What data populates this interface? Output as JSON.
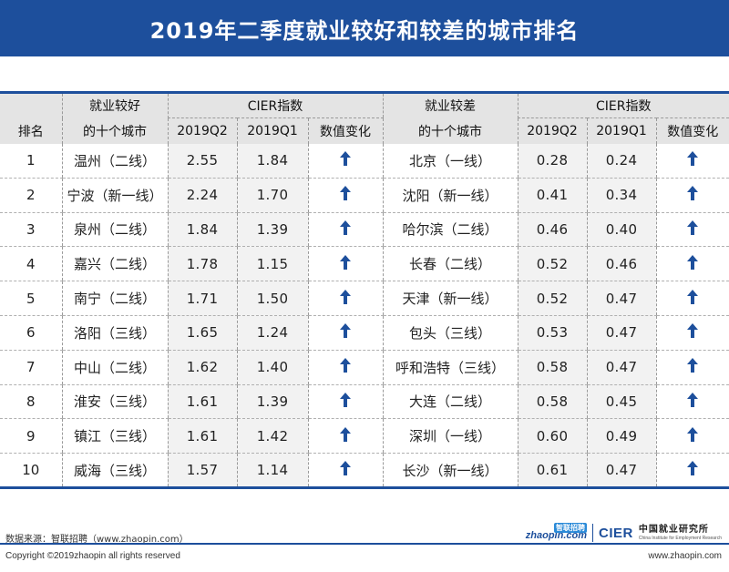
{
  "title": "2019年二季度就业较好和较差的城市排名",
  "table": {
    "headers": {
      "rank": "排名",
      "good_city_line1": "就业较好",
      "good_city_line2": "的十个城市",
      "cier_index": "CIER指数",
      "q2": "2019Q2",
      "q1": "2019Q1",
      "change": "数值变化",
      "bad_city_line1": "就业较差",
      "bad_city_line2": "的十个城市",
      "cier_index_2": "CIER指数",
      "q2_2": "2019Q2",
      "q1_2": "2019Q1",
      "change_2": "数值变化"
    },
    "rows": [
      {
        "rank": "1",
        "good_city": "温州（二线）",
        "good_q2": "2.55",
        "good_q1": "1.84",
        "good_change": "up",
        "bad_city": "北京（一线）",
        "bad_q2": "0.28",
        "bad_q1": "0.24",
        "bad_change": "up"
      },
      {
        "rank": "2",
        "good_city": "宁波（新一线）",
        "good_q2": "2.24",
        "good_q1": "1.70",
        "good_change": "up",
        "bad_city": "沈阳（新一线）",
        "bad_q2": "0.41",
        "bad_q1": "0.34",
        "bad_change": "up"
      },
      {
        "rank": "3",
        "good_city": "泉州（二线）",
        "good_q2": "1.84",
        "good_q1": "1.39",
        "good_change": "up",
        "bad_city": "哈尔滨（二线）",
        "bad_q2": "0.46",
        "bad_q1": "0.40",
        "bad_change": "up"
      },
      {
        "rank": "4",
        "good_city": "嘉兴（二线）",
        "good_q2": "1.78",
        "good_q1": "1.15",
        "good_change": "up",
        "bad_city": "长春（二线）",
        "bad_q2": "0.52",
        "bad_q1": "0.46",
        "bad_change": "up"
      },
      {
        "rank": "5",
        "good_city": "南宁（二线）",
        "good_q2": "1.71",
        "good_q1": "1.50",
        "good_change": "up",
        "bad_city": "天津（新一线）",
        "bad_q2": "0.52",
        "bad_q1": "0.47",
        "bad_change": "up"
      },
      {
        "rank": "6",
        "good_city": "洛阳（三线）",
        "good_q2": "1.65",
        "good_q1": "1.24",
        "good_change": "up",
        "bad_city": "包头（三线）",
        "bad_q2": "0.53",
        "bad_q1": "0.47",
        "bad_change": "up"
      },
      {
        "rank": "7",
        "good_city": "中山（二线）",
        "good_q2": "1.62",
        "good_q1": "1.40",
        "good_change": "up",
        "bad_city": "呼和浩特（三线）",
        "bad_q2": "0.58",
        "bad_q1": "0.47",
        "bad_change": "up"
      },
      {
        "rank": "8",
        "good_city": "淮安（三线）",
        "good_q2": "1.61",
        "good_q1": "1.39",
        "good_change": "up",
        "bad_city": "大连（二线）",
        "bad_q2": "0.58",
        "bad_q1": "0.45",
        "bad_change": "up"
      },
      {
        "rank": "9",
        "good_city": "镇江（三线）",
        "good_q2": "1.61",
        "good_q1": "1.42",
        "good_change": "up",
        "bad_city": "深圳（一线）",
        "bad_q2": "0.60",
        "bad_q1": "0.49",
        "bad_change": "up"
      },
      {
        "rank": "10",
        "good_city": "威海（三线）",
        "good_q2": "1.57",
        "good_q1": "1.14",
        "good_change": "up",
        "bad_city": "长沙（新一线）",
        "bad_q2": "0.61",
        "bad_q1": "0.47",
        "bad_change": "up"
      }
    ]
  },
  "footer": {
    "source": "数据来源：智联招聘（www.zhaopin.com）",
    "copyright": "Copyright ©2019zhaopin all rights reserved",
    "site": "www.zhaopin.com",
    "zhaopin_logo_text": "zhaopin.com",
    "zhaopin_logo_mark": "智联招聘",
    "cier_logo": "CIER",
    "cier_cn": "中国就业研究所",
    "cier_en": "China Institute for Employment Research"
  },
  "colors": {
    "brand_blue": "#1d4f9c",
    "header_gray": "#e4e4e4",
    "row_shade": "#f2f2f2"
  },
  "icons": {
    "change_up": "arrow-up-icon"
  }
}
